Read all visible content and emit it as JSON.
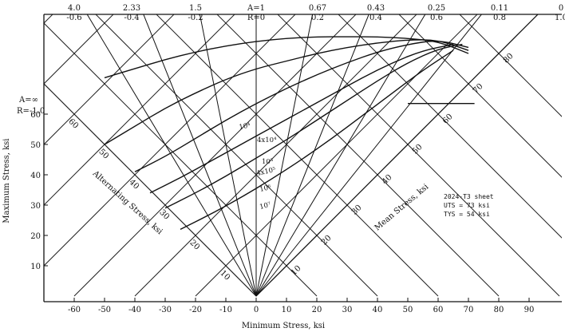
{
  "chart_data": {
    "type": "line",
    "title": "",
    "x_axis": {
      "label": "Minimum Stress, ksi",
      "range": [
        -65,
        100
      ],
      "ticks": [
        -60,
        -50,
        -40,
        -30,
        -20,
        -10,
        0,
        10,
        20,
        30,
        40,
        50,
        60,
        70,
        80,
        90
      ]
    },
    "y_axis": {
      "label": "Maximum Stress, ksi",
      "range": [
        0,
        85
      ],
      "ticks": [
        10,
        20,
        30,
        40,
        50,
        60
      ]
    },
    "alternating_axis": {
      "label": "Alternating Stress, ksi",
      "ticks": [
        10,
        20,
        30,
        40,
        50,
        60
      ]
    },
    "mean_axis": {
      "label": "Mean Stress, ksi",
      "ticks": [
        10,
        20,
        30,
        40,
        50,
        60,
        70,
        80
      ]
    },
    "ratio_lines": [
      {
        "A": "4.0",
        "R": "-0.6",
        "r": -0.6
      },
      {
        "A": "2.33",
        "R": "-0.4",
        "r": -0.4
      },
      {
        "A": "1.5",
        "R": "-0.2",
        "r": -0.2
      },
      {
        "A": "A=1",
        "R": "R=0",
        "r": 0
      },
      {
        "A": "0.67",
        "R": "0.2",
        "r": 0.2
      },
      {
        "A": "0.43",
        "R": "0.4",
        "r": 0.4
      },
      {
        "A": "0.25",
        "R": "0.6",
        "r": 0.6
      },
      {
        "A": "0.11",
        "R": "0.8",
        "r": 0.8
      },
      {
        "A": "0",
        "R": "1.0",
        "r": 1.0
      }
    ],
    "ratio_left": {
      "A": "A=∞",
      "R": "R=-1.0",
      "r": -1.0
    },
    "series": [
      {
        "name": "10⁴",
        "x": [
          -50,
          -40,
          -30,
          -20,
          -10,
          0,
          10,
          20,
          30,
          40,
          50,
          60,
          70
        ],
        "y": [
          72,
          75,
          78,
          80.5,
          82.5,
          84,
          85,
          85.5,
          85.5,
          85.5,
          85,
          84,
          80
        ]
      },
      {
        "name": "4x10⁴",
        "x": [
          -50,
          -40,
          -30,
          -20,
          -10,
          0,
          10,
          20,
          30,
          40,
          50,
          60,
          70
        ],
        "y": [
          50,
          56,
          62,
          67,
          71.5,
          75,
          77.5,
          80,
          82,
          83.5,
          84.5,
          84.5,
          81
        ]
      },
      {
        "name": "10⁵",
        "x": [
          -40,
          -30,
          -20,
          -10,
          0,
          10,
          20,
          30,
          40,
          50,
          60,
          70
        ],
        "y": [
          41,
          46,
          52,
          58,
          63.5,
          68.5,
          73,
          77,
          80.5,
          83,
          84.5,
          82
        ]
      },
      {
        "name": "4x10⁵",
        "x": [
          -35,
          -25,
          -15,
          -5,
          5,
          15,
          25,
          35,
          45,
          55,
          65
        ],
        "y": [
          34,
          39,
          44.5,
          50,
          55.5,
          61,
          66.5,
          72,
          77,
          81,
          83
        ]
      },
      {
        "name": "10⁶",
        "x": [
          -30,
          -20,
          -10,
          0,
          10,
          20,
          30,
          40,
          50,
          60,
          68
        ],
        "y": [
          29,
          34,
          39.5,
          45.5,
          51.5,
          58,
          64.5,
          71,
          77,
          81.5,
          83
        ]
      },
      {
        "name": "10⁷",
        "x": [
          -25,
          -15,
          -5,
          5,
          15,
          25,
          35,
          45,
          55,
          65
        ],
        "y": [
          22,
          27,
          32.5,
          38.5,
          45,
          52,
          59.5,
          67,
          74.5,
          81
        ]
      }
    ],
    "annotation": [
      "2024-T3 sheet",
      "UTS = 73 ksi",
      "TYS = 54 ksi"
    ]
  }
}
